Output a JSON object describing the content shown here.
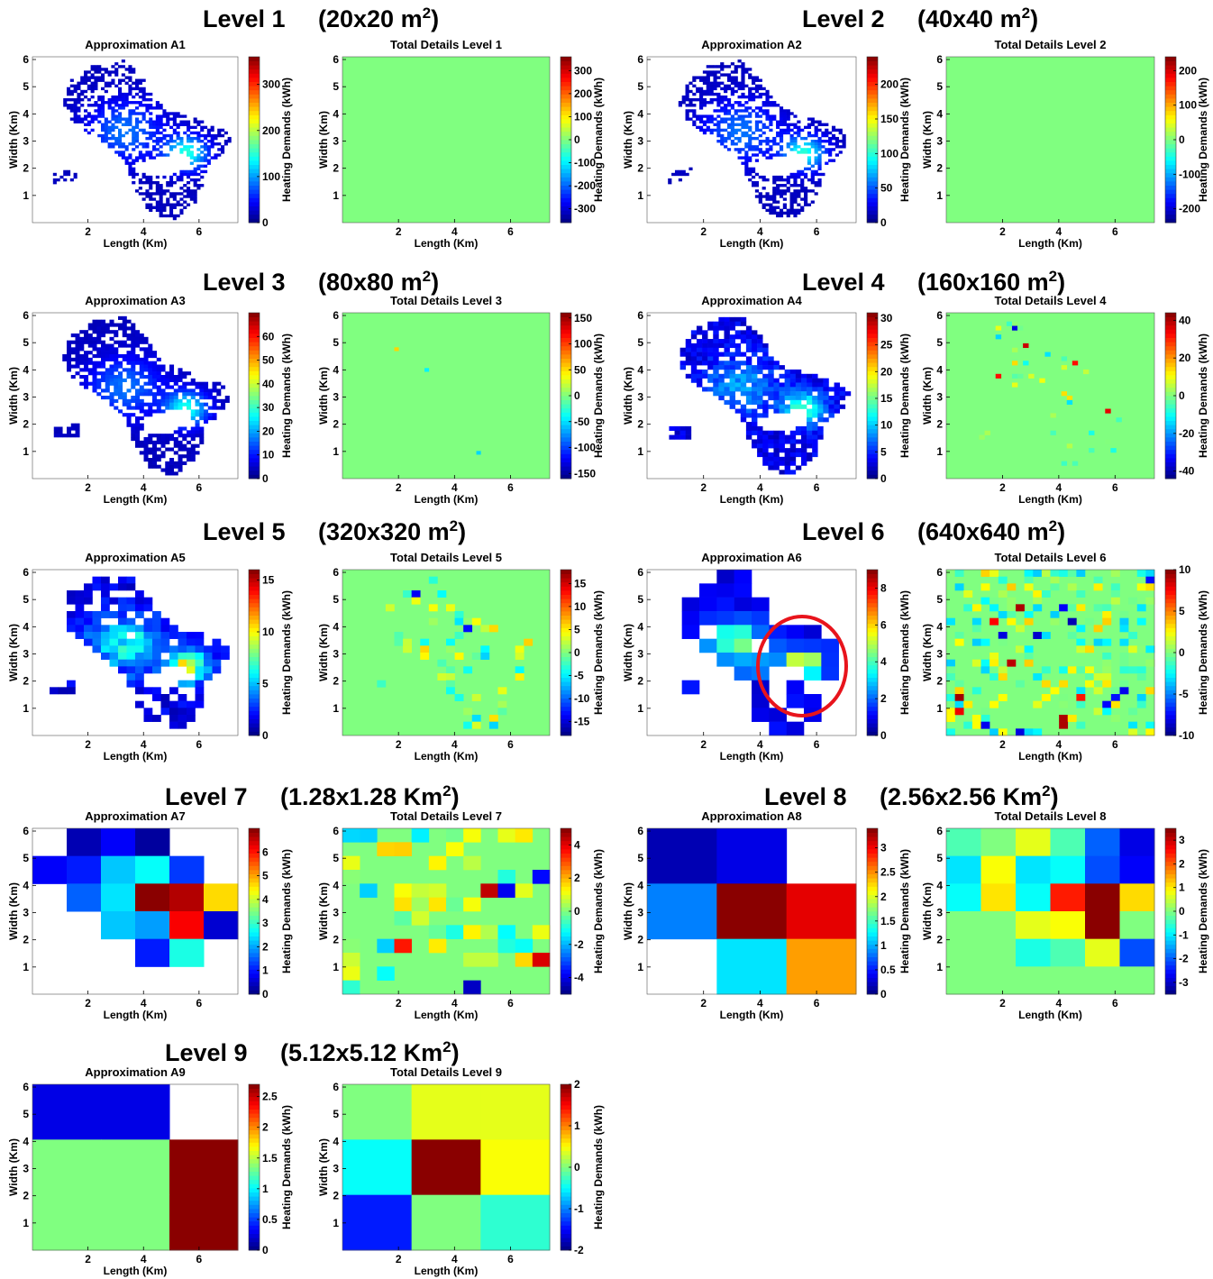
{
  "figure": {
    "levels": [
      {
        "level": "Level 1",
        "res_prefix": "(20x20 m",
        "res_sup": "2",
        "res_suffix": ")"
      },
      {
        "level": "Level 2",
        "res_prefix": "(40x40 m",
        "res_sup": "2",
        "res_suffix": ")"
      },
      {
        "level": "Level 3",
        "res_prefix": "(80x80 m",
        "res_sup": "2",
        "res_suffix": ")"
      },
      {
        "level": "Level 4",
        "res_prefix": "(160x160 m",
        "res_sup": "2",
        "res_suffix": ")"
      },
      {
        "level": "Level 5",
        "res_prefix": "(320x320 m",
        "res_sup": "2",
        "res_suffix": ")"
      },
      {
        "level": "Level 6",
        "res_prefix": "(640x640 m",
        "res_sup": "2",
        "res_suffix": ")"
      },
      {
        "level": "Level 7",
        "res_prefix": "(1.28x1.28 Km",
        "res_sup": "2",
        "res_suffix": ")"
      },
      {
        "level": "Level 8",
        "res_prefix": "(2.56x2.56 Km",
        "res_sup": "2",
        "res_suffix": ")"
      },
      {
        "level": "Level 9",
        "res_prefix": "(5.12x5.12 Km",
        "res_sup": "2",
        "res_suffix": ")"
      }
    ],
    "highlight": {
      "panel": "Approximation A6",
      "color": "#e8141c"
    }
  },
  "chart_data": [
    {
      "type": "heatmap",
      "title": "Approximation A1",
      "xlabel": "Length (Km)",
      "ylabel": "Width (Km)",
      "xticks": [
        2,
        4,
        6
      ],
      "yticks": [
        1,
        2,
        3,
        4,
        5,
        6
      ],
      "colorbar_label": "Heating Demands (kWh)",
      "colorbar_ticks": [
        0,
        100,
        200,
        300
      ],
      "clim": [
        0,
        360
      ],
      "colormap": "jet",
      "grid_size": [
        60,
        60
      ]
    },
    {
      "type": "heatmap",
      "title": "Total Details Level 1",
      "xlabel": "Length (Km)",
      "ylabel": "Width (Km)",
      "xticks": [
        2,
        4,
        6
      ],
      "yticks": [
        1,
        2,
        3,
        4,
        5,
        6
      ],
      "colorbar_label": "Heating Demands (kWh)",
      "colorbar_ticks": [
        -300,
        -200,
        -100,
        0,
        100,
        200,
        300
      ],
      "clim": [
        -360,
        360
      ],
      "colormap": "jet",
      "grid_size": [
        60,
        60
      ]
    },
    {
      "type": "heatmap",
      "title": "Approximation A2",
      "xlabel": "Length (Km)",
      "ylabel": "Width (Km)",
      "xticks": [
        2,
        4,
        6
      ],
      "yticks": [
        1,
        2,
        3,
        4,
        5,
        6
      ],
      "colorbar_label": "Heating Demands (kWh)",
      "colorbar_ticks": [
        0,
        50,
        100,
        150,
        200
      ],
      "clim": [
        0,
        240
      ],
      "colormap": "jet",
      "grid_size": [
        60,
        60
      ]
    },
    {
      "type": "heatmap",
      "title": "Total Details Level 2",
      "xlabel": "Length (Km)",
      "ylabel": "Width (Km)",
      "xticks": [
        2,
        4,
        6
      ],
      "yticks": [
        1,
        2,
        3,
        4,
        5,
        6
      ],
      "colorbar_label": "Heating Demands (kWh)",
      "colorbar_ticks": [
        -200,
        -100,
        0,
        100,
        200
      ],
      "clim": [
        -240,
        240
      ],
      "colormap": "jet",
      "grid_size": [
        60,
        60
      ]
    },
    {
      "type": "heatmap",
      "title": "Approximation A3",
      "xlabel": "Length (Km)",
      "ylabel": "Width (Km)",
      "xticks": [
        2,
        4,
        6
      ],
      "yticks": [
        1,
        2,
        3,
        4,
        5,
        6
      ],
      "colorbar_label": "Heating Demands (kWh)",
      "colorbar_ticks": [
        0,
        10,
        20,
        30,
        40,
        50,
        60
      ],
      "clim": [
        0,
        70
      ],
      "colormap": "jet",
      "grid_size": [
        48,
        48
      ]
    },
    {
      "type": "heatmap",
      "title": "Total Details Level 3",
      "xlabel": "Length (Km)",
      "ylabel": "Width (Km)",
      "xticks": [
        2,
        4,
        6
      ],
      "yticks": [
        1,
        2,
        3,
        4,
        5,
        6
      ],
      "colorbar_label": "Heating Demands (kWh)",
      "colorbar_ticks": [
        -150,
        -100,
        -50,
        0,
        50,
        100,
        150
      ],
      "clim": [
        -160,
        160
      ],
      "colormap": "jet",
      "grid_size": [
        48,
        48
      ]
    },
    {
      "type": "heatmap",
      "title": "Approximation A4",
      "xlabel": "Length (Km)",
      "ylabel": "Width (Km)",
      "xticks": [
        2,
        4,
        6
      ],
      "yticks": [
        1,
        2,
        3,
        4,
        5,
        6
      ],
      "colorbar_label": "Heating Demands (kWh)",
      "colorbar_ticks": [
        0,
        5,
        10,
        15,
        20,
        25,
        30
      ],
      "clim": [
        0,
        31
      ],
      "colormap": "jet",
      "grid_size": [
        38,
        38
      ]
    },
    {
      "type": "heatmap",
      "title": "Total Details Level 4",
      "xlabel": "Length (Km)",
      "ylabel": "Width (Km)",
      "xticks": [
        2,
        4,
        6
      ],
      "yticks": [
        1,
        2,
        3,
        4,
        5,
        6
      ],
      "colorbar_label": "Heating Demands (kWh)",
      "colorbar_ticks": [
        -40,
        -20,
        0,
        20,
        40
      ],
      "clim": [
        -44,
        44
      ],
      "colormap": "jet",
      "grid_size": [
        38,
        38
      ]
    },
    {
      "type": "heatmap",
      "title": "Approximation A5",
      "xlabel": "Length (Km)",
      "ylabel": "Width (Km)",
      "xticks": [
        2,
        4,
        6
      ],
      "yticks": [
        1,
        2,
        3,
        4,
        5,
        6
      ],
      "colorbar_label": "Heating Demands (kWh)",
      "colorbar_ticks": [
        0,
        5,
        10,
        15
      ],
      "clim": [
        0,
        16
      ],
      "colormap": "jet",
      "grid_size": [
        24,
        24
      ]
    },
    {
      "type": "heatmap",
      "title": "Total Details Level 5",
      "xlabel": "Length (Km)",
      "ylabel": "Width (Km)",
      "xticks": [
        2,
        4,
        6
      ],
      "yticks": [
        1,
        2,
        3,
        4,
        5,
        6
      ],
      "colorbar_label": "Heating Demands (kWh)",
      "colorbar_ticks": [
        -15,
        -10,
        -5,
        0,
        5,
        10,
        15
      ],
      "clim": [
        -18,
        18
      ],
      "colormap": "jet",
      "grid_size": [
        24,
        24
      ]
    },
    {
      "type": "heatmap",
      "title": "Approximation A6",
      "xlabel": "Length (Km)",
      "ylabel": "Width (Km)",
      "xticks": [
        2,
        4,
        6
      ],
      "yticks": [
        1,
        2,
        3,
        4,
        5,
        6
      ],
      "colorbar_label": "Heating Demands (kWh)",
      "colorbar_ticks": [
        0,
        2,
        4,
        6,
        8
      ],
      "clim": [
        0,
        9
      ],
      "colormap": "jet",
      "grid_size": [
        12,
        12
      ]
    },
    {
      "type": "heatmap",
      "title": "Total Details Level 6",
      "xlabel": "Length (Km)",
      "ylabel": "Width (Km)",
      "xticks": [
        2,
        4,
        6
      ],
      "yticks": [
        1,
        2,
        3,
        4,
        5,
        6
      ],
      "colorbar_label": "Heating Demands (kWh)",
      "colorbar_ticks": [
        -10,
        -5,
        0,
        5,
        10
      ],
      "clim": [
        -10,
        10
      ],
      "colormap": "jet",
      "grid_size": [
        24,
        24
      ]
    },
    {
      "type": "heatmap",
      "title": "Approximation A7",
      "xlabel": "Length (Km)",
      "ylabel": "Width (Km)",
      "xticks": [
        2,
        4,
        6
      ],
      "yticks": [
        1,
        2,
        3,
        4,
        5,
        6
      ],
      "colorbar_label": "Heating Demands (kWh)",
      "colorbar_ticks": [
        0,
        1,
        2,
        3,
        4,
        5,
        6
      ],
      "clim": [
        0,
        7
      ],
      "colormap": "jet",
      "grid_size": [
        6,
        6
      ]
    },
    {
      "type": "heatmap",
      "title": "Total Details Level 7",
      "xlabel": "Length (Km)",
      "ylabel": "Width (Km)",
      "xticks": [
        2,
        4,
        6
      ],
      "yticks": [
        1,
        2,
        3,
        4,
        5,
        6
      ],
      "colorbar_label": "Heating Demands (kWh)",
      "colorbar_ticks": [
        -4,
        -2,
        0,
        2,
        4
      ],
      "clim": [
        -5,
        5
      ],
      "colormap": "jet",
      "grid_size": [
        12,
        12
      ]
    },
    {
      "type": "heatmap",
      "title": "Approximation A8",
      "xlabel": "Length (Km)",
      "ylabel": "Width (Km)",
      "xticks": [
        2,
        4,
        6
      ],
      "yticks": [
        1,
        2,
        3,
        4,
        5,
        6
      ],
      "colorbar_label": "Heating Demands (kWh)",
      "colorbar_ticks": [
        0,
        0.5,
        1,
        1.5,
        2,
        2.5,
        3
      ],
      "clim": [
        0,
        3.4
      ],
      "colormap": "jet",
      "grid_size": [
        3,
        3
      ]
    },
    {
      "type": "heatmap",
      "title": "Total Details Level 8",
      "xlabel": "Length (Km)",
      "ylabel": "Width (Km)",
      "xticks": [
        2,
        4,
        6
      ],
      "yticks": [
        1,
        2,
        3,
        4,
        5,
        6
      ],
      "colorbar_label": "Heating Demands (kWh)",
      "colorbar_ticks": [
        -3,
        -2,
        -1,
        0,
        1,
        2,
        3
      ],
      "clim": [
        -3.5,
        3.5
      ],
      "colormap": "jet",
      "grid_size": [
        6,
        6
      ]
    },
    {
      "type": "heatmap",
      "title": "Approximation A9",
      "xlabel": "Length (Km)",
      "ylabel": "Width (Km)",
      "xticks": [
        2,
        4,
        6
      ],
      "yticks": [
        1,
        2,
        3,
        4,
        5,
        6
      ],
      "colorbar_label": "Heating Demands (kWh)",
      "colorbar_ticks": [
        0,
        0.5,
        1,
        1.5,
        2,
        2.5
      ],
      "clim": [
        0,
        2.7
      ],
      "colormap": "jet",
      "grid_size": [
        3,
        3
      ]
    },
    {
      "type": "heatmap",
      "title": "Total Details Level 9",
      "xlabel": "Length (Km)",
      "ylabel": "Width (Km)",
      "xticks": [
        2,
        4,
        6
      ],
      "yticks": [
        1,
        2,
        3,
        4,
        5,
        6
      ],
      "colorbar_label": "Heating Demands (kWh)",
      "colorbar_ticks": [
        -2,
        -1,
        0,
        1,
        2
      ],
      "clim": [
        -2,
        2
      ],
      "colormap": "jet",
      "grid_size": [
        3,
        3
      ]
    }
  ]
}
